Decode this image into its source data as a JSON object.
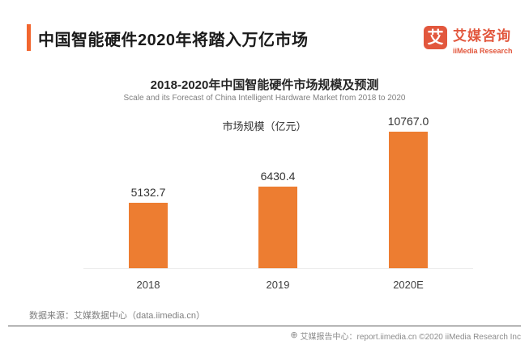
{
  "header": {
    "title": "中国智能硬件2020年将踏入万亿市场",
    "logo": {
      "mark": "艾",
      "name_cn": "艾媒咨询",
      "name_en": "iiMedia Research"
    }
  },
  "chart_data": {
    "type": "bar",
    "title": "2018-2020年中国智能硬件市场规模及预测",
    "subtitle": "Scale and its Forecast of China Intelligent Hardware Market from 2018 to 2020",
    "legend": "市场规模（亿元）",
    "legend_position": "top-center",
    "categories": [
      "2018",
      "2019",
      "2020E"
    ],
    "values": [
      5132.7,
      6430.4,
      10767.0
    ],
    "value_labels": [
      "5132.7",
      "6430.4",
      "10767.0"
    ],
    "ylim": [
      0,
      10767
    ],
    "grid": false,
    "bar_color": "#ED7D31"
  },
  "source": {
    "text": "数据来源：艾媒数据中心（data.iimedia.cn）"
  },
  "footer": {
    "icon": "globe-icon",
    "text": "艾媒报告中心：report.iimedia.cn  ©2020  iiMedia Research Inc"
  },
  "colors": {
    "accent": "#F2662F",
    "bar": "#ED7D31",
    "logo": "#E2573D",
    "title_text": "#1A1A1A",
    "muted_text": "#7F7F7F"
  }
}
